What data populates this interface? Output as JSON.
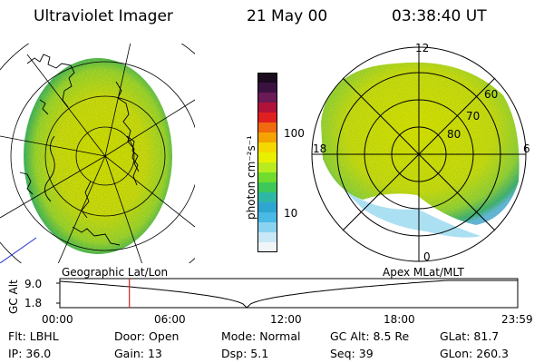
{
  "header": {
    "instrument": "Ultraviolet Imager",
    "date": "21 May 00",
    "time": "03:38:40 UT"
  },
  "colorbar": {
    "unit_label": "photon cm⁻²s⁻¹",
    "ticks": [
      "100",
      "10"
    ],
    "colors": [
      "#1a0b1e",
      "#3a1240",
      "#6a1a55",
      "#b0123a",
      "#e02020",
      "#f06a10",
      "#f5a300",
      "#f5d800",
      "#e8f000",
      "#b8ec20",
      "#70dc30",
      "#3ec85a",
      "#2fb7a6",
      "#2fa6d2",
      "#4ab9e6",
      "#8ad3f0",
      "#c8e8f5",
      "#f0f6f8"
    ]
  },
  "geo_panel": {
    "label": "Geographic Lat/Lon"
  },
  "apex_panel": {
    "label": "Apex MLat/MLT",
    "lat_labels": [
      "60",
      "70",
      "80"
    ],
    "mlt_labels": [
      "12",
      "18",
      "6",
      "0"
    ]
  },
  "timeline": {
    "ylabel": "GC Alt",
    "yticks": [
      "9.0",
      "1.8"
    ],
    "xticks": [
      "00:00",
      "06:00",
      "12:00",
      "18:00",
      "23:59"
    ],
    "current_time_hours": 3.644,
    "marker_color": "#d42020"
  },
  "footer": {
    "row1": [
      {
        "key": "Flt:",
        "val": "LBHL"
      },
      {
        "key": "Door:",
        "val": "Open"
      },
      {
        "key": "Mode:",
        "val": "Normal"
      },
      {
        "key": "GC Alt:",
        "val": "8.5 Re"
      },
      {
        "key": "GLat:",
        "val": "81.7"
      }
    ],
    "row2": [
      {
        "key": "IP:",
        "val": "36.0"
      },
      {
        "key": "Gain:",
        "val": "13"
      },
      {
        "key": "Dsp:",
        "val": "5.1"
      },
      {
        "key": "Seq:",
        "val": "39"
      },
      {
        "key": "GLon:",
        "val": "260.3"
      }
    ]
  }
}
